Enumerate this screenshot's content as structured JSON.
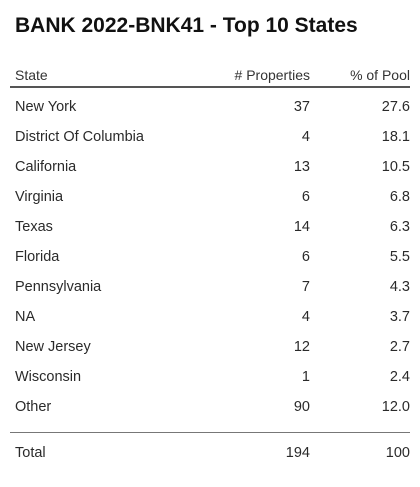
{
  "title": "BANK 2022-BNK41 - Top 10 States",
  "columns": {
    "state": "State",
    "properties": "# Properties",
    "pool": "% of Pool"
  },
  "rows": [
    {
      "state": "New York",
      "properties": "37",
      "pool": "27.6"
    },
    {
      "state": "District Of Columbia",
      "properties": "4",
      "pool": "18.1"
    },
    {
      "state": "California",
      "properties": "13",
      "pool": "10.5"
    },
    {
      "state": "Virginia",
      "properties": "6",
      "pool": "6.8"
    },
    {
      "state": "Texas",
      "properties": "14",
      "pool": "6.3"
    },
    {
      "state": "Florida",
      "properties": "6",
      "pool": "5.5"
    },
    {
      "state": "Pennsylvania",
      "properties": "7",
      "pool": "4.3"
    },
    {
      "state": "NA",
      "properties": "4",
      "pool": "3.7"
    },
    {
      "state": "New Jersey",
      "properties": "12",
      "pool": "2.7"
    },
    {
      "state": "Wisconsin",
      "properties": "1",
      "pool": "2.4"
    },
    {
      "state": "Other",
      "properties": "90",
      "pool": "12.0"
    }
  ],
  "total": {
    "label": "Total",
    "properties": "194",
    "pool": "100"
  }
}
